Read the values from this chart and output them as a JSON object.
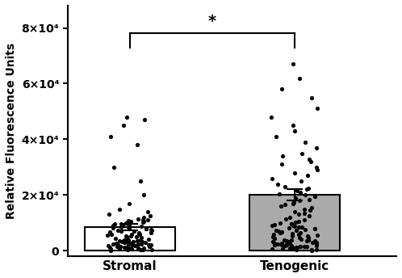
{
  "groups": [
    "Stromal",
    "Tenogenic"
  ],
  "bar_means": [
    8500,
    20000
  ],
  "bar_sem": [
    1200,
    2000
  ],
  "bar_colors": [
    "#ffffff",
    "#aaaaaa"
  ],
  "bar_edgecolor": "#000000",
  "bar_width": 0.55,
  "ylim": [
    -2000,
    88000
  ],
  "yticks": [
    0,
    20000,
    40000,
    60000,
    80000
  ],
  "ytick_labels": [
    "0",
    "2×10⁴",
    "4×10⁴",
    "6×10⁴",
    "8×10⁴"
  ],
  "ylabel": "Relative Fluorescence Units",
  "significance_text": "*",
  "dot_color": "#000000",
  "dot_size": 14,
  "stromal_dots": [
    200,
    300,
    400,
    500,
    500,
    600,
    700,
    800,
    900,
    1000,
    1000,
    1100,
    1200,
    1300,
    1400,
    1500,
    1500,
    1600,
    1700,
    1800,
    1900,
    2000,
    2000,
    2100,
    2200,
    2300,
    2400,
    2500,
    2500,
    2600,
    2700,
    2800,
    2900,
    3000,
    3000,
    3100,
    3200,
    3300,
    3400,
    3500,
    3500,
    3600,
    3700,
    3800,
    3900,
    4000,
    4000,
    4200,
    4400,
    4600,
    4800,
    5000,
    5000,
    5200,
    5400,
    5600,
    5800,
    6000,
    6000,
    6200,
    6400,
    6600,
    6800,
    7000,
    7000,
    7200,
    7400,
    7600,
    7800,
    8000,
    8000,
    8200,
    8400,
    8600,
    8800,
    9000,
    9000,
    9200,
    9400,
    9600,
    9800,
    10000,
    10000,
    10200,
    10400,
    10600,
    10800,
    11000,
    11000,
    11500,
    12000,
    12500,
    13000,
    14000,
    15000,
    17000,
    20000,
    25000,
    30000,
    38000,
    41000,
    45000,
    47000,
    48000
  ],
  "tenogenic_dots": [
    200,
    300,
    400,
    500,
    600,
    700,
    800,
    900,
    1000,
    1100,
    1200,
    1300,
    1400,
    1500,
    1600,
    1700,
    1800,
    1900,
    2000,
    2100,
    2200,
    2300,
    2400,
    2500,
    2600,
    2700,
    2800,
    2900,
    3000,
    3100,
    3200,
    3300,
    3400,
    3500,
    3600,
    3700,
    3800,
    3900,
    4000,
    4200,
    4400,
    4600,
    4800,
    5000,
    5200,
    5400,
    5600,
    5800,
    6000,
    6200,
    6400,
    6600,
    6800,
    7000,
    7200,
    7400,
    7600,
    7800,
    8000,
    8200,
    8400,
    8600,
    8800,
    9000,
    9200,
    9400,
    9600,
    9800,
    10000,
    10200,
    10500,
    11000,
    11500,
    12000,
    12500,
    13000,
    13500,
    14000,
    14500,
    15000,
    15500,
    16000,
    16500,
    17000,
    17500,
    18000,
    18500,
    19000,
    19500,
    20000,
    20500,
    21000,
    21500,
    22000,
    22500,
    23000,
    24000,
    25000,
    26000,
    27000,
    28000,
    29000,
    30000,
    31000,
    32000,
    33000,
    34000,
    35000,
    37000,
    39000,
    41000,
    43000,
    45000,
    48000,
    51000,
    55000,
    58000,
    62000,
    67000
  ]
}
